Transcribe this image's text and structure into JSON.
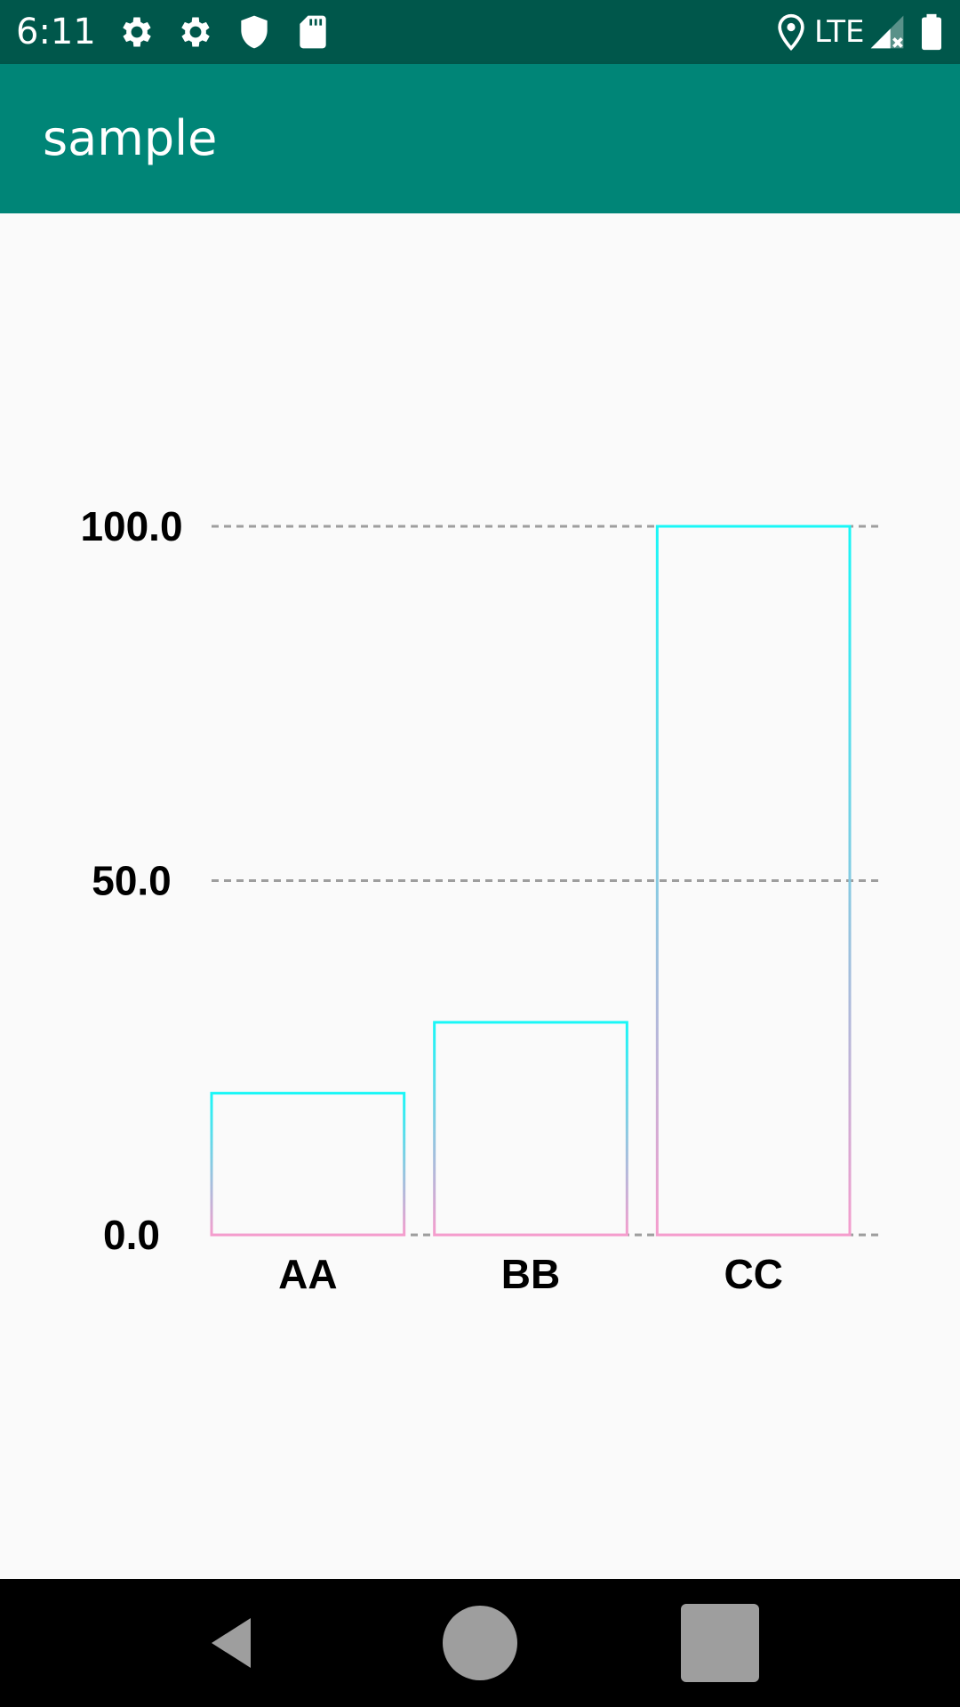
{
  "status_bar": {
    "time": "6:11",
    "network": "LTE",
    "icons": [
      "settings-icon",
      "settings-icon",
      "shield-icon",
      "sd-card-icon",
      "location-icon",
      "signal-icon",
      "battery-icon"
    ]
  },
  "app_bar": {
    "title": "sample",
    "color": "#008577"
  },
  "nav_bar": {
    "icons": [
      "back-icon",
      "home-icon",
      "recents-icon"
    ]
  },
  "chart_data": {
    "type": "bar",
    "categories": [
      "AA",
      "BB",
      "CC"
    ],
    "values": [
      20,
      30,
      100
    ],
    "ylim": [
      0,
      100
    ],
    "yticks": [
      0,
      50,
      100
    ],
    "ytick_labels": [
      "0.0",
      "50.0",
      "100.0"
    ],
    "grid": true,
    "bar_gradient_top": "#18f7f7",
    "bar_gradient_bottom": "#f59dcd"
  }
}
